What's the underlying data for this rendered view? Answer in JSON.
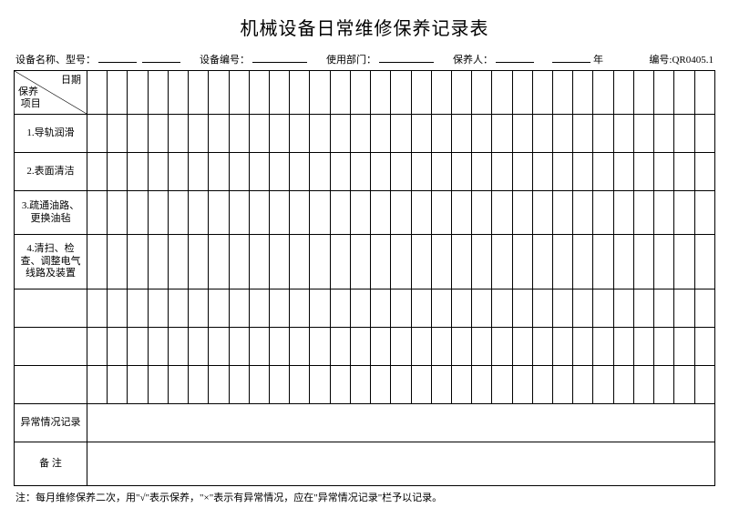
{
  "title": "机械设备日常维修保养记录表",
  "header": {
    "equipment_name_model": "设备名称、型号：",
    "equipment_no": "设备编号：",
    "department": "使用部门：",
    "maintainer": "保养人：",
    "year_suffix": "年",
    "code_label": "编号:",
    "code_value": "QR0405.1"
  },
  "diag": {
    "date": "日期",
    "item_l1": "保养",
    "item_l2": "项目"
  },
  "rows": {
    "r1": "1.导轨润滑",
    "r2": "2.表面清洁",
    "r3": "3.疏通油路、更换油毡",
    "r4": "4.清扫、检查、调整电气线路及装置",
    "abn": "异常情况记录",
    "remark": "备 注"
  },
  "footnote": "注：每月维修保养二次，用\"√\"表示保养，\"×\"表示有异常情况，应在\"异常情况记录\"栏予以记录。",
  "layout": {
    "data_columns": 31
  }
}
